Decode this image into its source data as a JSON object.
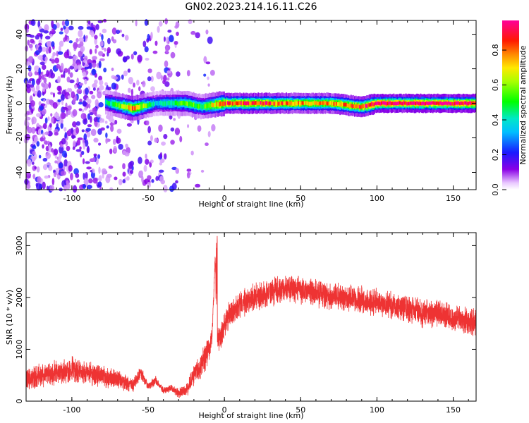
{
  "title": "GN02.2023.214.16.11.C26",
  "colorbar": {
    "label": "Normalized spectral amplitude",
    "ticks": [
      "0.0",
      "0.2",
      "0.4",
      "0.6",
      "0.8"
    ],
    "tick_values": [
      0.0,
      0.2,
      0.4,
      0.6,
      0.8
    ],
    "range": [
      0,
      0.97
    ]
  },
  "chart_data": [
    {
      "type": "heatmap",
      "xlabel": "Height of straight line (km)",
      "ylabel": "Frequency (Hz)",
      "xlim": [
        -130,
        165
      ],
      "ylim": [
        -50,
        48
      ],
      "xticks": [
        -100,
        -50,
        0,
        50,
        100,
        150
      ],
      "yticks": [
        -40,
        -20,
        0,
        20,
        40
      ],
      "colormap": "rainbow (purple-blue-cyan-green-yellow-red-magenta)",
      "ridge": [
        {
          "x": -75,
          "y": 0,
          "amp": 0.45
        },
        {
          "x": -60,
          "y": -3,
          "amp": 0.8
        },
        {
          "x": -45,
          "y": 0,
          "amp": 0.35
        },
        {
          "x": -25,
          "y": 0,
          "amp": 0.55
        },
        {
          "x": -15,
          "y": -2,
          "amp": 0.5
        },
        {
          "x": 0,
          "y": 0,
          "amp": 0.85
        },
        {
          "x": 25,
          "y": 0,
          "amp": 0.85
        },
        {
          "x": 50,
          "y": 0,
          "amp": 0.75
        },
        {
          "x": 70,
          "y": 0,
          "amp": 0.75
        },
        {
          "x": 90,
          "y": -2,
          "amp": 0.85
        },
        {
          "x": 100,
          "y": 0,
          "amp": 0.95
        },
        {
          "x": 165,
          "y": 0,
          "amp": 0.95
        }
      ]
    },
    {
      "type": "line",
      "xlabel": "Height of straight line (km)",
      "ylabel": "SNR (10 * v/v)",
      "xlim": [
        -130,
        165
      ],
      "ylim": [
        0,
        3250
      ],
      "xticks": [
        -100,
        -50,
        0,
        50,
        100,
        150
      ],
      "yticks": [
        0,
        1000,
        2000,
        3000
      ],
      "series": [
        {
          "color": "#ee3333",
          "x": [
            -130,
            -120,
            -110,
            -100,
            -90,
            -80,
            -70,
            -60,
            -55,
            -50,
            -45,
            -40,
            -35,
            -30,
            -25,
            -20,
            -15,
            -10,
            -8,
            -6,
            -5,
            -3,
            0,
            5,
            10,
            20,
            30,
            40,
            50,
            60,
            70,
            80,
            90,
            100,
            110,
            120,
            130,
            140,
            150,
            160,
            165
          ],
          "y": [
            400,
            500,
            550,
            600,
            550,
            480,
            420,
            300,
            550,
            300,
            400,
            200,
            250,
            150,
            200,
            500,
            700,
            1000,
            1300,
            2800,
            1300,
            1200,
            1500,
            1700,
            1850,
            2000,
            2100,
            2150,
            2150,
            2100,
            2000,
            2000,
            1950,
            1900,
            1850,
            1800,
            1700,
            1700,
            1600,
            1550,
            1500
          ],
          "noise_amplitude": [
            250,
            250,
            300,
            300,
            280,
            250,
            200,
            150,
            150,
            100,
            100,
            80,
            80,
            100,
            150,
            250,
            300,
            300,
            250,
            100,
            250,
            300,
            300,
            300,
            300,
            300,
            300,
            300,
            300,
            300,
            300,
            300,
            300,
            300,
            300,
            300,
            300,
            300,
            300,
            300,
            300
          ]
        }
      ]
    }
  ]
}
